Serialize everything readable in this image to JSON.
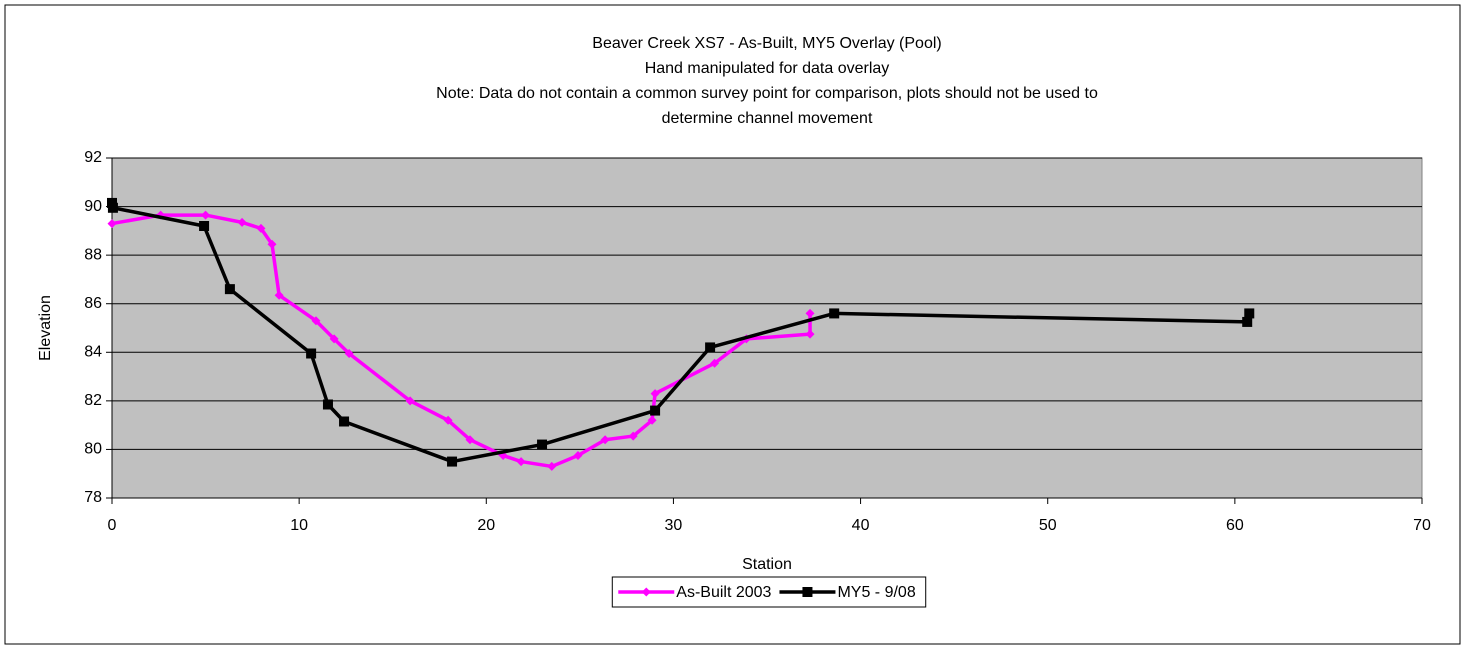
{
  "chart_data": {
    "type": "line",
    "title": "Beaver Creek XS7 - As-Built, MY5 Overlay (Pool)",
    "subtitle": "Hand manipulated for data overlay",
    "annotations": [
      "Note: Data do not contain a common survey point for comparison, plots should not be used to",
      "determine channel movement"
    ],
    "x_label": "Station",
    "y_label": "Elevation",
    "xlim": [
      0,
      70
    ],
    "xticks": [
      0,
      10,
      20,
      30,
      40,
      50,
      60,
      70
    ],
    "ylim": [
      78,
      92
    ],
    "yticks": [
      78,
      80,
      82,
      84,
      86,
      88,
      90,
      92
    ],
    "grid": true,
    "plot_background": "#c0c0c0",
    "legend": "bottom",
    "series": [
      {
        "name": "As-Built 2003",
        "color": "#ff00ff",
        "marker": "diamond",
        "x": [
          0,
          2.6,
          5.0,
          6.95,
          7.96,
          8.55,
          8.93,
          10.9,
          11.87,
          12.67,
          15.93,
          17.96,
          19.13,
          20.9,
          21.86,
          23.5,
          24.9,
          26.35,
          27.85,
          28.86,
          29.02,
          32.2,
          33.9,
          37.3,
          37.3
        ],
        "values": [
          89.3,
          89.65,
          89.65,
          89.35,
          89.1,
          88.45,
          86.35,
          85.3,
          84.55,
          83.95,
          82.0,
          81.2,
          80.4,
          79.75,
          79.5,
          79.3,
          79.75,
          80.4,
          80.55,
          81.2,
          82.3,
          83.55,
          84.55,
          84.75,
          85.6
        ]
      },
      {
        "name": "MY5 - 9/08",
        "color": "#000000",
        "marker": "square",
        "x": [
          0,
          0.05,
          4.92,
          6.3,
          10.64,
          11.54,
          12.4,
          18.17,
          22.98,
          29.02,
          31.96,
          38.59,
          60.66,
          60.77
        ],
        "values": [
          90.15,
          89.95,
          89.2,
          86.6,
          83.95,
          81.85,
          81.15,
          79.5,
          80.2,
          81.6,
          84.2,
          85.6,
          85.25,
          85.6
        ]
      }
    ]
  }
}
